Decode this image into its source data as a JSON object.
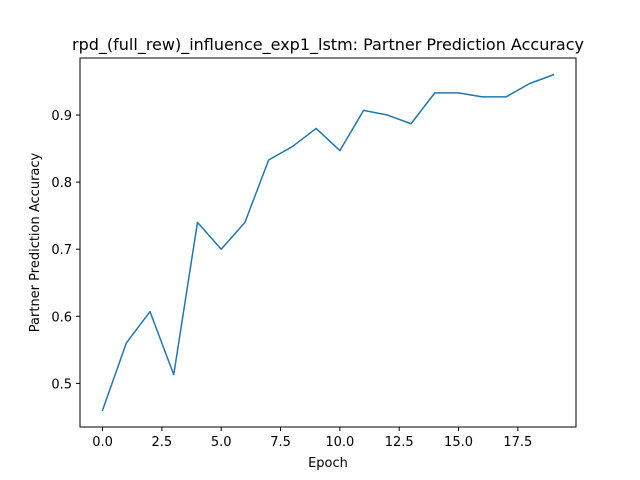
{
  "chart_data": {
    "type": "line",
    "title": "rpd_(full_rew)_influence_exp1_lstm: Partner Prediction Accuracy",
    "xlabel": "Epoch",
    "ylabel": "Partner Prediction Accuracy",
    "xlim": [
      -0.95,
      19.95
    ],
    "ylim": [
      0.435,
      0.985
    ],
    "x_ticks": [
      0.0,
      2.5,
      5.0,
      7.5,
      10.0,
      12.5,
      15.0,
      17.5
    ],
    "x_tick_labels": [
      "0.0",
      "2.5",
      "5.0",
      "7.5",
      "10.0",
      "12.5",
      "15.0",
      "17.5"
    ],
    "y_ticks": [
      0.5,
      0.6,
      0.7,
      0.8,
      0.9
    ],
    "y_tick_labels": [
      "0.5",
      "0.6",
      "0.7",
      "0.8",
      "0.9"
    ],
    "grid": false,
    "series": [
      {
        "color": "#1f77b4",
        "x": [
          0,
          1,
          2,
          3,
          4,
          5,
          6,
          7,
          8,
          9,
          10,
          11,
          12,
          13,
          14,
          15,
          16,
          17,
          18,
          19
        ],
        "y": [
          0.46,
          0.56,
          0.607,
          0.513,
          0.74,
          0.7,
          0.74,
          0.833,
          0.853,
          0.88,
          0.847,
          0.907,
          0.9,
          0.887,
          0.933,
          0.933,
          0.927,
          0.927,
          0.947,
          0.96
        ]
      }
    ]
  }
}
